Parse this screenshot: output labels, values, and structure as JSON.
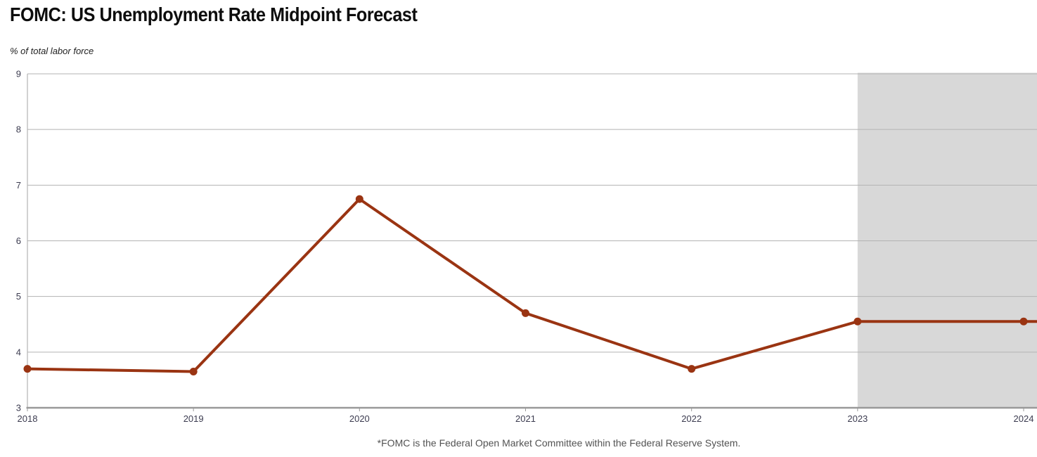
{
  "chart_data": {
    "type": "line",
    "title": "FOMC: US Unemployment Rate Midpoint Forecast",
    "ylabel": "% of total labor force",
    "xlabel": "",
    "footnote": "*FOMC is the Federal Open Market Committee within the Federal Reserve System.",
    "x": [
      2018,
      2019,
      2020,
      2021,
      2022,
      2023,
      2024
    ],
    "series": [
      {
        "name": "US unemployment rate midpoint forecast",
        "values": [
          3.7,
          3.65,
          6.75,
          4.7,
          3.7,
          4.55,
          4.55
        ]
      }
    ],
    "ylim": [
      3,
      9
    ],
    "yticks": [
      3,
      4,
      5,
      6,
      7,
      8,
      9
    ],
    "grid": "horizontal",
    "legend": "none",
    "forecast_band": {
      "x_start": 2023,
      "x_end": 2024,
      "extends_to_right_edge": true
    },
    "colors": {
      "line": "#9a3412",
      "marker": "#9a3412",
      "forecast_band": "#d8d8d8",
      "gridline": "#b3b3b3",
      "axis": "#999999",
      "tick_label": "#3c3c50"
    }
  }
}
